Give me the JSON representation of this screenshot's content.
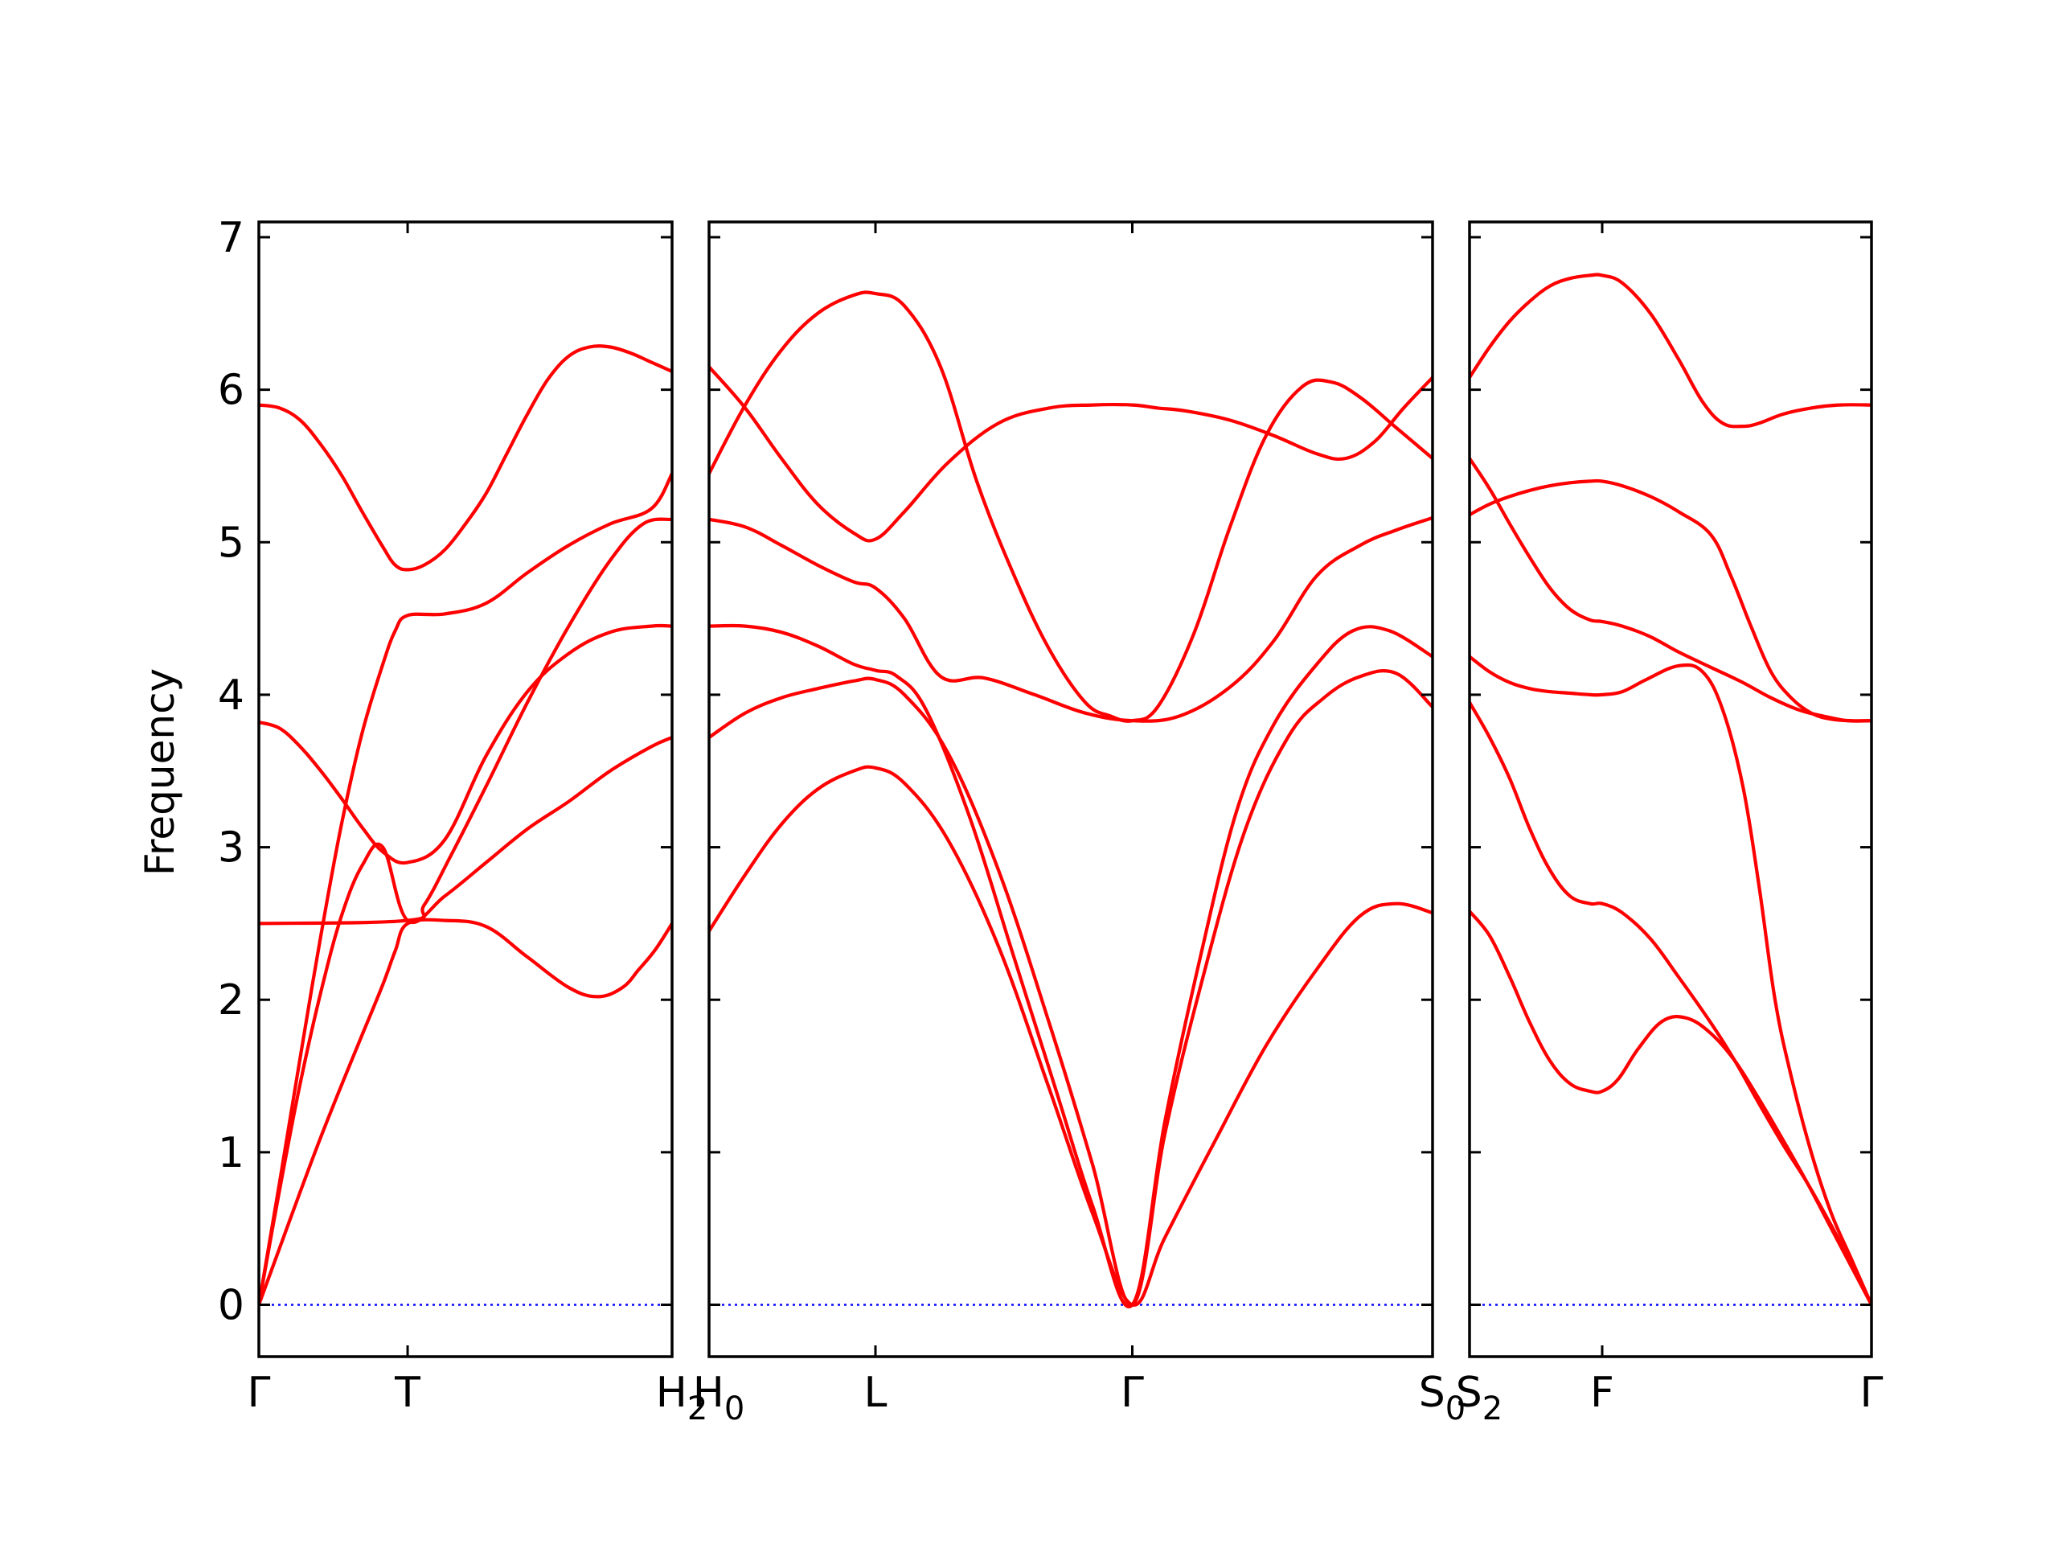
{
  "chart_data": {
    "type": "line",
    "ylabel": "Frequency",
    "ylim": [
      -0.34,
      7.1
    ],
    "yticks": [
      "0",
      "1",
      "2",
      "3",
      "4",
      "5",
      "6",
      "7"
    ],
    "ytick_values": [
      0,
      1,
      2,
      3,
      4,
      5,
      6,
      7
    ],
    "colors": {
      "bands": "#ff0000",
      "zero_line": "#0000ff",
      "axes": "#000000"
    },
    "grid": false,
    "legend": "none",
    "panels": [
      {
        "xlim": [
          0,
          1
        ],
        "ticks": [
          {
            "x": 0,
            "label": "Γ"
          },
          {
            "x": 0.36,
            "label": "T"
          },
          {
            "x": 1,
            "label": "H",
            "sub": "2"
          }
        ],
        "bands": [
          {
            "x": [
              0,
              0.05,
              0.1,
              0.15,
              0.2,
              0.25,
              0.3,
              0.33,
              0.36,
              0.45,
              0.55,
              0.65,
              0.75,
              0.82,
              0.88,
              0.92,
              0.96,
              1
            ],
            "y": [
              0,
              0.37,
              0.74,
              1.1,
              1.44,
              1.77,
              2.1,
              2.32,
              2.5,
              2.52,
              2.48,
              2.28,
              2.08,
              2.02,
              2.08,
              2.2,
              2.33,
              2.5
            ]
          },
          {
            "x": [
              0,
              0.05,
              0.1,
              0.15,
              0.2,
              0.25,
              0.3,
              0.33,
              0.36,
              0.45,
              0.55,
              0.65,
              0.75,
              0.85,
              0.95,
              1
            ],
            "y": [
              0,
              0.8,
              1.62,
              2.42,
              3.15,
              3.75,
              4.2,
              4.42,
              4.52,
              4.53,
              4.6,
              4.8,
              4.98,
              5.12,
              5.22,
              5.45
            ]
          },
          {
            "x": [
              0,
              0.05,
              0.1,
              0.15,
              0.2,
              0.25,
              0.3,
              0.36,
              0.45,
              0.55,
              0.65,
              0.75,
              0.85,
              0.95,
              1
            ],
            "y": [
              3.82,
              3.78,
              3.66,
              3.5,
              3.32,
              3.13,
              2.97,
              2.9,
              3.05,
              3.6,
              4.02,
              4.27,
              4.41,
              4.45,
              4.45
            ]
          },
          {
            "x": [
              0,
              0.05,
              0.1,
              0.15,
              0.2,
              0.25,
              0.3,
              0.36,
              0.45,
              0.55,
              0.65,
              0.75,
              0.85,
              0.95,
              1
            ],
            "y": [
              0,
              0.75,
              1.45,
              2.05,
              2.55,
              2.88,
              3.0,
              2.52,
              2.68,
              2.9,
              3.12,
              3.3,
              3.5,
              3.66,
              3.72
            ]
          },
          {
            "x": [
              0,
              0.36,
              0.4,
              0.46,
              0.55,
              0.65,
              0.75,
              0.85,
              0.93,
              1
            ],
            "y": [
              2.5,
              2.52,
              2.62,
              2.92,
              3.4,
              3.95,
              4.45,
              4.88,
              5.12,
              5.15
            ]
          },
          {
            "x": [
              0,
              0.05,
              0.1,
              0.15,
              0.2,
              0.25,
              0.3,
              0.33,
              0.36,
              0.4,
              0.45,
              0.5,
              0.55,
              0.6,
              0.65,
              0.7,
              0.75,
              0.8,
              0.85,
              0.9,
              0.95,
              1
            ],
            "y": [
              5.9,
              5.88,
              5.8,
              5.64,
              5.44,
              5.2,
              4.97,
              4.85,
              4.82,
              4.85,
              4.95,
              5.12,
              5.32,
              5.58,
              5.84,
              6.07,
              6.22,
              6.28,
              6.28,
              6.24,
              6.18,
              6.12
            ]
          }
        ]
      },
      {
        "xlim": [
          0,
          1
        ],
        "ticks": [
          {
            "x": 0,
            "label": "H",
            "sub": "0"
          },
          {
            "x": 0.23,
            "label": "L"
          },
          {
            "x": 0.585,
            "label": "Γ"
          },
          {
            "x": 1,
            "label": "S",
            "sub": "0"
          }
        ],
        "bands": [
          {
            "x": [
              0,
              0.05,
              0.1,
              0.15,
              0.2,
              0.23,
              0.27,
              0.33,
              0.4,
              0.47,
              0.53,
              0.585,
              0.63,
              0.7,
              0.77,
              0.84,
              0.9,
              0.95,
              1
            ],
            "y": [
              2.45,
              2.82,
              3.15,
              3.38,
              3.5,
              3.52,
              3.42,
              3.05,
              2.35,
              1.42,
              0.6,
              0,
              0.44,
              1.08,
              1.7,
              2.2,
              2.55,
              2.63,
              2.57
            ]
          },
          {
            "x": [
              0,
              0.05,
              0.1,
              0.15,
              0.2,
              0.23,
              0.27,
              0.33,
              0.4,
              0.47,
              0.53,
              0.585,
              0.63,
              0.68,
              0.74,
              0.8,
              0.85,
              0.9,
              0.95,
              1
            ],
            "y": [
              3.72,
              3.88,
              3.98,
              4.04,
              4.09,
              4.1,
              4.0,
              3.62,
              2.85,
              1.85,
              0.92,
              0,
              1.12,
              2.1,
              3.1,
              3.72,
              3.98,
              4.12,
              4.14,
              3.92
            ]
          },
          {
            "x": [
              0,
              0.05,
              0.1,
              0.15,
              0.2,
              0.23,
              0.26,
              0.3,
              0.36,
              0.42,
              0.48,
              0.53,
              0.585,
              0.63,
              0.68,
              0.73,
              0.78,
              0.84,
              0.89,
              0.94,
              1
            ],
            "y": [
              4.45,
              4.45,
              4.41,
              4.32,
              4.2,
              4.16,
              4.12,
              3.9,
              3.2,
              2.3,
              1.4,
              0.65,
              0,
              1.2,
              2.3,
              3.25,
              3.8,
              4.2,
              4.42,
              4.42,
              4.25
            ]
          },
          {
            "x": [
              0,
              0.05,
              0.1,
              0.15,
              0.2,
              0.23,
              0.27,
              0.32,
              0.38,
              0.45,
              0.52,
              0.585,
              0.65,
              0.72,
              0.78,
              0.84,
              0.9,
              0.95,
              1
            ],
            "y": [
              5.15,
              5.1,
              4.98,
              4.85,
              4.74,
              4.7,
              4.5,
              4.12,
              4.11,
              4.0,
              3.88,
              3.83,
              3.86,
              4.05,
              4.35,
              4.78,
              4.98,
              5.08,
              5.16
            ]
          },
          {
            "x": [
              0,
              0.05,
              0.1,
              0.15,
              0.2,
              0.23,
              0.27,
              0.33,
              0.4,
              0.47,
              0.53,
              0.585,
              0.62,
              0.66,
              0.72,
              0.78,
              0.84,
              0.88,
              0.92,
              0.96,
              1
            ],
            "y": [
              6.15,
              5.88,
              5.55,
              5.25,
              5.06,
              5.02,
              5.2,
              5.52,
              5.78,
              5.88,
              5.9,
              5.9,
              5.88,
              5.86,
              5.8,
              5.7,
              5.58,
              5.55,
              5.66,
              5.88,
              6.08
            ]
          },
          {
            "x": [
              0,
              0.05,
              0.1,
              0.15,
              0.2,
              0.23,
              0.27,
              0.32,
              0.37,
              0.42,
              0.47,
              0.52,
              0.555,
              0.585,
              0.62,
              0.67,
              0.72,
              0.77,
              0.82,
              0.86,
              0.9,
              0.95,
              1
            ],
            "y": [
              5.45,
              5.9,
              6.26,
              6.5,
              6.62,
              6.63,
              6.55,
              6.15,
              5.4,
              4.8,
              4.3,
              3.95,
              3.86,
              3.83,
              3.92,
              4.4,
              5.1,
              5.7,
              6.02,
              6.05,
              5.95,
              5.75,
              5.55
            ]
          }
        ]
      },
      {
        "xlim": [
          0,
          1
        ],
        "ticks": [
          {
            "x": 0,
            "label": "S",
            "sub": "2"
          },
          {
            "x": 0.33,
            "label": "F"
          },
          {
            "x": 1,
            "label": "Γ"
          }
        ],
        "bands": [
          {
            "x": [
              0,
              0.05,
              0.1,
              0.15,
              0.2,
              0.25,
              0.3,
              0.33,
              0.37,
              0.42,
              0.48,
              0.54,
              0.6,
              0.66,
              0.72,
              0.78,
              0.84,
              0.9,
              0.95,
              1
            ],
            "y": [
              2.58,
              2.42,
              2.15,
              1.85,
              1.6,
              1.45,
              1.4,
              1.4,
              1.48,
              1.68,
              1.86,
              1.88,
              1.78,
              1.6,
              1.35,
              1.08,
              0.8,
              0.5,
              0.25,
              0
            ]
          },
          {
            "x": [
              0,
              0.05,
              0.1,
              0.15,
              0.2,
              0.25,
              0.3,
              0.33,
              0.38,
              0.45,
              0.52,
              0.6,
              0.66,
              0.72,
              0.78,
              0.84,
              0.9,
              0.95,
              1
            ],
            "y": [
              3.95,
              3.72,
              3.45,
              3.12,
              2.85,
              2.68,
              2.63,
              2.63,
              2.57,
              2.4,
              2.15,
              1.85,
              1.6,
              1.32,
              1.05,
              0.8,
              0.52,
              0.27,
              0
            ]
          },
          {
            "x": [
              0,
              0.05,
              0.1,
              0.15,
              0.2,
              0.25,
              0.3,
              0.33,
              0.38,
              0.44,
              0.52,
              0.58,
              0.63,
              0.68,
              0.72,
              0.76,
              0.8,
              0.85,
              0.9,
              0.95,
              1
            ],
            "y": [
              4.25,
              4.15,
              4.08,
              4.04,
              4.02,
              4.01,
              4.0,
              4.0,
              4.02,
              4.1,
              4.19,
              4.15,
              3.9,
              3.4,
              2.75,
              2.0,
              1.5,
              1.0,
              0.6,
              0.3,
              0
            ]
          },
          {
            "x": [
              0,
              0.05,
              0.1,
              0.15,
              0.2,
              0.25,
              0.3,
              0.33,
              0.38,
              0.45,
              0.52,
              0.6,
              0.68,
              0.75,
              0.82,
              0.88,
              0.94,
              1
            ],
            "y": [
              5.55,
              5.35,
              5.12,
              4.9,
              4.7,
              4.56,
              4.49,
              4.48,
              4.45,
              4.38,
              4.28,
              4.18,
              4.08,
              3.98,
              3.9,
              3.86,
              3.83,
              3.83
            ]
          },
          {
            "x": [
              0,
              0.05,
              0.1,
              0.15,
              0.2,
              0.25,
              0.3,
              0.33,
              0.38,
              0.45,
              0.52,
              0.6,
              0.65,
              0.7,
              0.75,
              0.8,
              0.85,
              0.9,
              0.95,
              1
            ],
            "y": [
              5.18,
              5.25,
              5.3,
              5.34,
              5.37,
              5.39,
              5.4,
              5.4,
              5.37,
              5.3,
              5.2,
              5.05,
              4.78,
              4.45,
              4.15,
              3.98,
              3.88,
              3.84,
              3.83,
              3.83
            ]
          },
          {
            "x": [
              0,
              0.05,
              0.1,
              0.15,
              0.2,
              0.25,
              0.3,
              0.33,
              0.38,
              0.45,
              0.52,
              0.58,
              0.63,
              0.68,
              0.72,
              0.78,
              0.85,
              0.92,
              1
            ],
            "y": [
              6.08,
              6.28,
              6.45,
              6.58,
              6.68,
              6.73,
              6.75,
              6.75,
              6.7,
              6.5,
              6.2,
              5.92,
              5.78,
              5.76,
              5.78,
              5.84,
              5.88,
              5.9,
              5.9
            ]
          }
        ]
      }
    ]
  }
}
